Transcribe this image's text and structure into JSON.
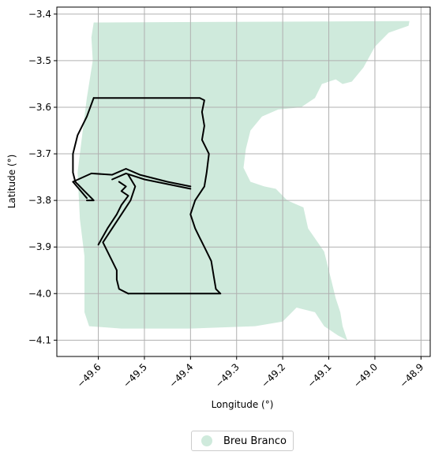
{
  "chart_data": {
    "type": "map",
    "xlabel": "Longitude (°)",
    "ylabel": "Latitude (°)",
    "xlim": [
      -49.69,
      -48.88
    ],
    "ylim": [
      -4.135,
      -3.385
    ],
    "xticks": [
      -49.6,
      -49.5,
      -49.4,
      -49.3,
      -49.2,
      -49.1,
      -49.0,
      -48.9
    ],
    "yticks": [
      -3.4,
      -3.5,
      -3.6,
      -3.7,
      -3.8,
      -3.9,
      -4.0,
      -4.1
    ],
    "xtick_labels": [
      "−49.6",
      "−49.5",
      "−49.4",
      "−49.3",
      "−49.2",
      "−49.1",
      "−49.0",
      "−48.9"
    ],
    "ytick_labels": [
      "−3.4",
      "−3.5",
      "−3.6",
      "−3.7",
      "−3.8",
      "−3.9",
      "−4.0",
      "−4.1"
    ],
    "grid": true,
    "legend_position": "bottom-center",
    "colors": {
      "region_fill": "#cfeadc",
      "boundary": "#000000",
      "grid": "#b0b0b0"
    },
    "layers": [
      {
        "name": "Breu Branco",
        "kind": "filled_region",
        "color": "#cfeadc",
        "polygon": [
          [
            -49.61,
            -3.418
          ],
          [
            -48.925,
            -3.415
          ],
          [
            -48.927,
            -3.425
          ],
          [
            -48.97,
            -3.44
          ],
          [
            -49.0,
            -3.47
          ],
          [
            -49.025,
            -3.515
          ],
          [
            -49.05,
            -3.545
          ],
          [
            -49.07,
            -3.55
          ],
          [
            -49.085,
            -3.54
          ],
          [
            -49.115,
            -3.55
          ],
          [
            -49.13,
            -3.58
          ],
          [
            -49.16,
            -3.6
          ],
          [
            -49.21,
            -3.605
          ],
          [
            -49.245,
            -3.62
          ],
          [
            -49.27,
            -3.65
          ],
          [
            -49.28,
            -3.69
          ],
          [
            -49.285,
            -3.73
          ],
          [
            -49.27,
            -3.76
          ],
          [
            -49.24,
            -3.77
          ],
          [
            -49.215,
            -3.775
          ],
          [
            -49.19,
            -3.8
          ],
          [
            -49.155,
            -3.815
          ],
          [
            -49.145,
            -3.86
          ],
          [
            -49.11,
            -3.91
          ],
          [
            -49.095,
            -3.97
          ],
          [
            -49.085,
            -4.01
          ],
          [
            -49.075,
            -4.04
          ],
          [
            -49.07,
            -4.07
          ],
          [
            -49.06,
            -4.1
          ],
          [
            -49.05,
            -4.105
          ],
          [
            -49.08,
            -4.09
          ],
          [
            -49.11,
            -4.07
          ],
          [
            -49.13,
            -4.04
          ],
          [
            -49.17,
            -4.03
          ],
          [
            -49.2,
            -4.06
          ],
          [
            -49.26,
            -4.07
          ],
          [
            -49.4,
            -4.075
          ],
          [
            -49.55,
            -4.075
          ],
          [
            -49.62,
            -4.07
          ],
          [
            -49.63,
            -4.04
          ],
          [
            -49.63,
            -3.92
          ],
          [
            -49.64,
            -3.84
          ],
          [
            -49.645,
            -3.74
          ],
          [
            -49.635,
            -3.66
          ],
          [
            -49.625,
            -3.58
          ],
          [
            -49.612,
            -3.5
          ],
          [
            -49.615,
            -3.45
          ]
        ]
      },
      {
        "name": "boundary",
        "kind": "outline",
        "color": "#000000",
        "lines": [
          [
            [
              -49.61,
              -3.58
            ],
            [
              -49.38,
              -3.58
            ],
            [
              -49.37,
              -3.585
            ],
            [
              -49.375,
              -3.61
            ],
            [
              -49.37,
              -3.64
            ],
            [
              -49.375,
              -3.67
            ],
            [
              -49.36,
              -3.7
            ],
            [
              -49.365,
              -3.74
            ],
            [
              -49.37,
              -3.77
            ],
            [
              -49.39,
              -3.8
            ],
            [
              -49.4,
              -3.83
            ],
            [
              -49.39,
              -3.86
            ],
            [
              -49.38,
              -3.88
            ],
            [
              -49.37,
              -3.9
            ],
            [
              -49.355,
              -3.93
            ],
            [
              -49.35,
              -3.96
            ],
            [
              -49.345,
              -3.99
            ],
            [
              -49.335,
              -4.0
            ],
            [
              -49.535,
              -4.0
            ]
          ],
          [
            [
              -49.61,
              -3.58
            ],
            [
              -49.625,
              -3.62
            ],
            [
              -49.645,
              -3.66
            ],
            [
              -49.655,
              -3.7
            ],
            [
              -49.655,
              -3.74
            ],
            [
              -49.65,
              -3.76
            ],
            [
              -49.63,
              -3.78
            ],
            [
              -49.61,
              -3.8
            ],
            [
              -49.625,
              -3.8
            ]
          ],
          [
            [
              -49.655,
              -3.76
            ],
            [
              -49.615,
              -3.742
            ],
            [
              -49.57,
              -3.745
            ],
            [
              -49.54,
              -3.732
            ],
            [
              -49.51,
              -3.745
            ],
            [
              -49.45,
              -3.76
            ],
            [
              -49.4,
              -3.77
            ]
          ],
          [
            [
              -49.57,
              -3.755
            ],
            [
              -49.54,
              -3.742
            ],
            [
              -49.5,
              -3.755
            ],
            [
              -49.4,
              -3.775
            ]
          ],
          [
            [
              -49.655,
              -3.76
            ],
            [
              -49.625,
              -3.795
            ]
          ],
          [
            [
              -49.535,
              -3.745
            ],
            [
              -49.52,
              -3.77
            ],
            [
              -49.53,
              -3.8
            ],
            [
              -49.55,
              -3.83
            ],
            [
              -49.57,
              -3.86
            ],
            [
              -49.59,
              -3.89
            ],
            [
              -49.58,
              -3.91
            ],
            [
              -49.57,
              -3.93
            ],
            [
              -49.56,
              -3.95
            ],
            [
              -49.56,
              -3.97
            ],
            [
              -49.555,
              -3.99
            ],
            [
              -49.535,
              -4.0
            ]
          ],
          [
            [
              -49.555,
              -3.76
            ],
            [
              -49.54,
              -3.77
            ],
            [
              -49.55,
              -3.78
            ],
            [
              -49.535,
              -3.79
            ],
            [
              -49.55,
              -3.81
            ],
            [
              -49.56,
              -3.83
            ],
            [
              -49.58,
              -3.86
            ],
            [
              -49.6,
              -3.895
            ]
          ]
        ]
      }
    ],
    "legend": [
      {
        "label": "Breu Branco",
        "color": "#cfeadc",
        "marker": "circle"
      }
    ]
  }
}
